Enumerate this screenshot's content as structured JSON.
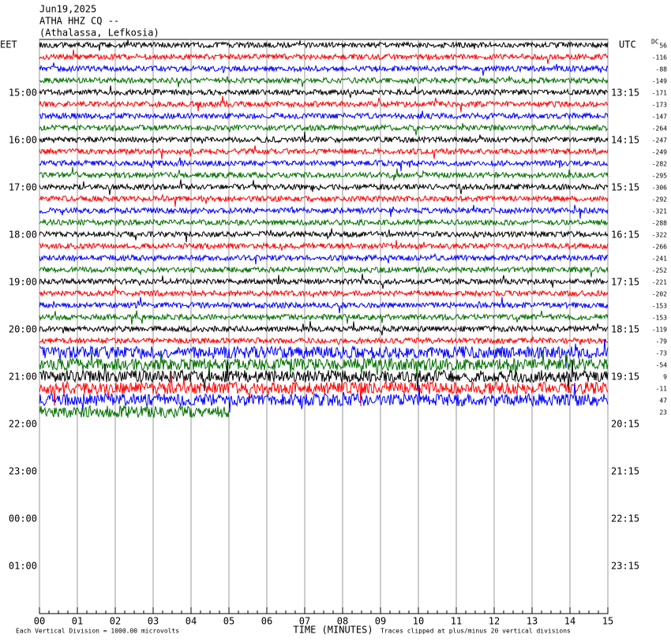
{
  "chart_data": {
    "type": "helicorder",
    "title": "Jun19,2025",
    "subtitle": [
      "ATHA HHZ CQ --",
      "(Athalassa, Lefkosia)"
    ],
    "left_axis_title": "EET",
    "right_axis_title": "UTC",
    "dc_title": "DC",
    "xlabel": "TIME (MINUTES)",
    "xlim": [
      0,
      15
    ],
    "xticks": [
      {
        "value": 0,
        "label": "00"
      },
      {
        "value": 1,
        "label": "01"
      },
      {
        "value": 2,
        "label": "02"
      },
      {
        "value": 3,
        "label": "03"
      },
      {
        "value": 4,
        "label": "04"
      },
      {
        "value": 5,
        "label": "05"
      },
      {
        "value": 6,
        "label": "06"
      },
      {
        "value": 7,
        "label": "07"
      },
      {
        "value": 8,
        "label": "08"
      },
      {
        "value": 9,
        "label": "09"
      },
      10,
      11,
      12,
      13,
      14,
      15
    ],
    "left_times": [
      "15:00",
      "16:00",
      "17:00",
      "18:00",
      "19:00",
      "20:00",
      "21:00",
      "22:00",
      "23:00",
      "00:00",
      "01:00"
    ],
    "right_times": [
      "13:15",
      "14:15",
      "15:15",
      "16:15",
      "17:15",
      "18:15",
      "19:15",
      "20:15",
      "21:15",
      "22:15",
      "23:15"
    ],
    "dc_offsets": [
      56,
      -116,
      -88,
      -149,
      -171,
      -173,
      -147,
      -264,
      -247,
      -249,
      -282,
      -295,
      -306,
      -292,
      -321,
      -288,
      -322,
      -266,
      -241,
      -252,
      -221,
      -202,
      -153,
      -153,
      -119,
      -79,
      -73,
      -54,
      9,
      -11,
      47,
      23
    ],
    "colors": [
      "#000000",
      "#ff0000",
      "#0000ff",
      "#007000"
    ],
    "note_left": "Each Vertical Division = 1000.00 microvolts",
    "note_right": "Traces clipped at plus/minus 20 vertical divisions"
  }
}
